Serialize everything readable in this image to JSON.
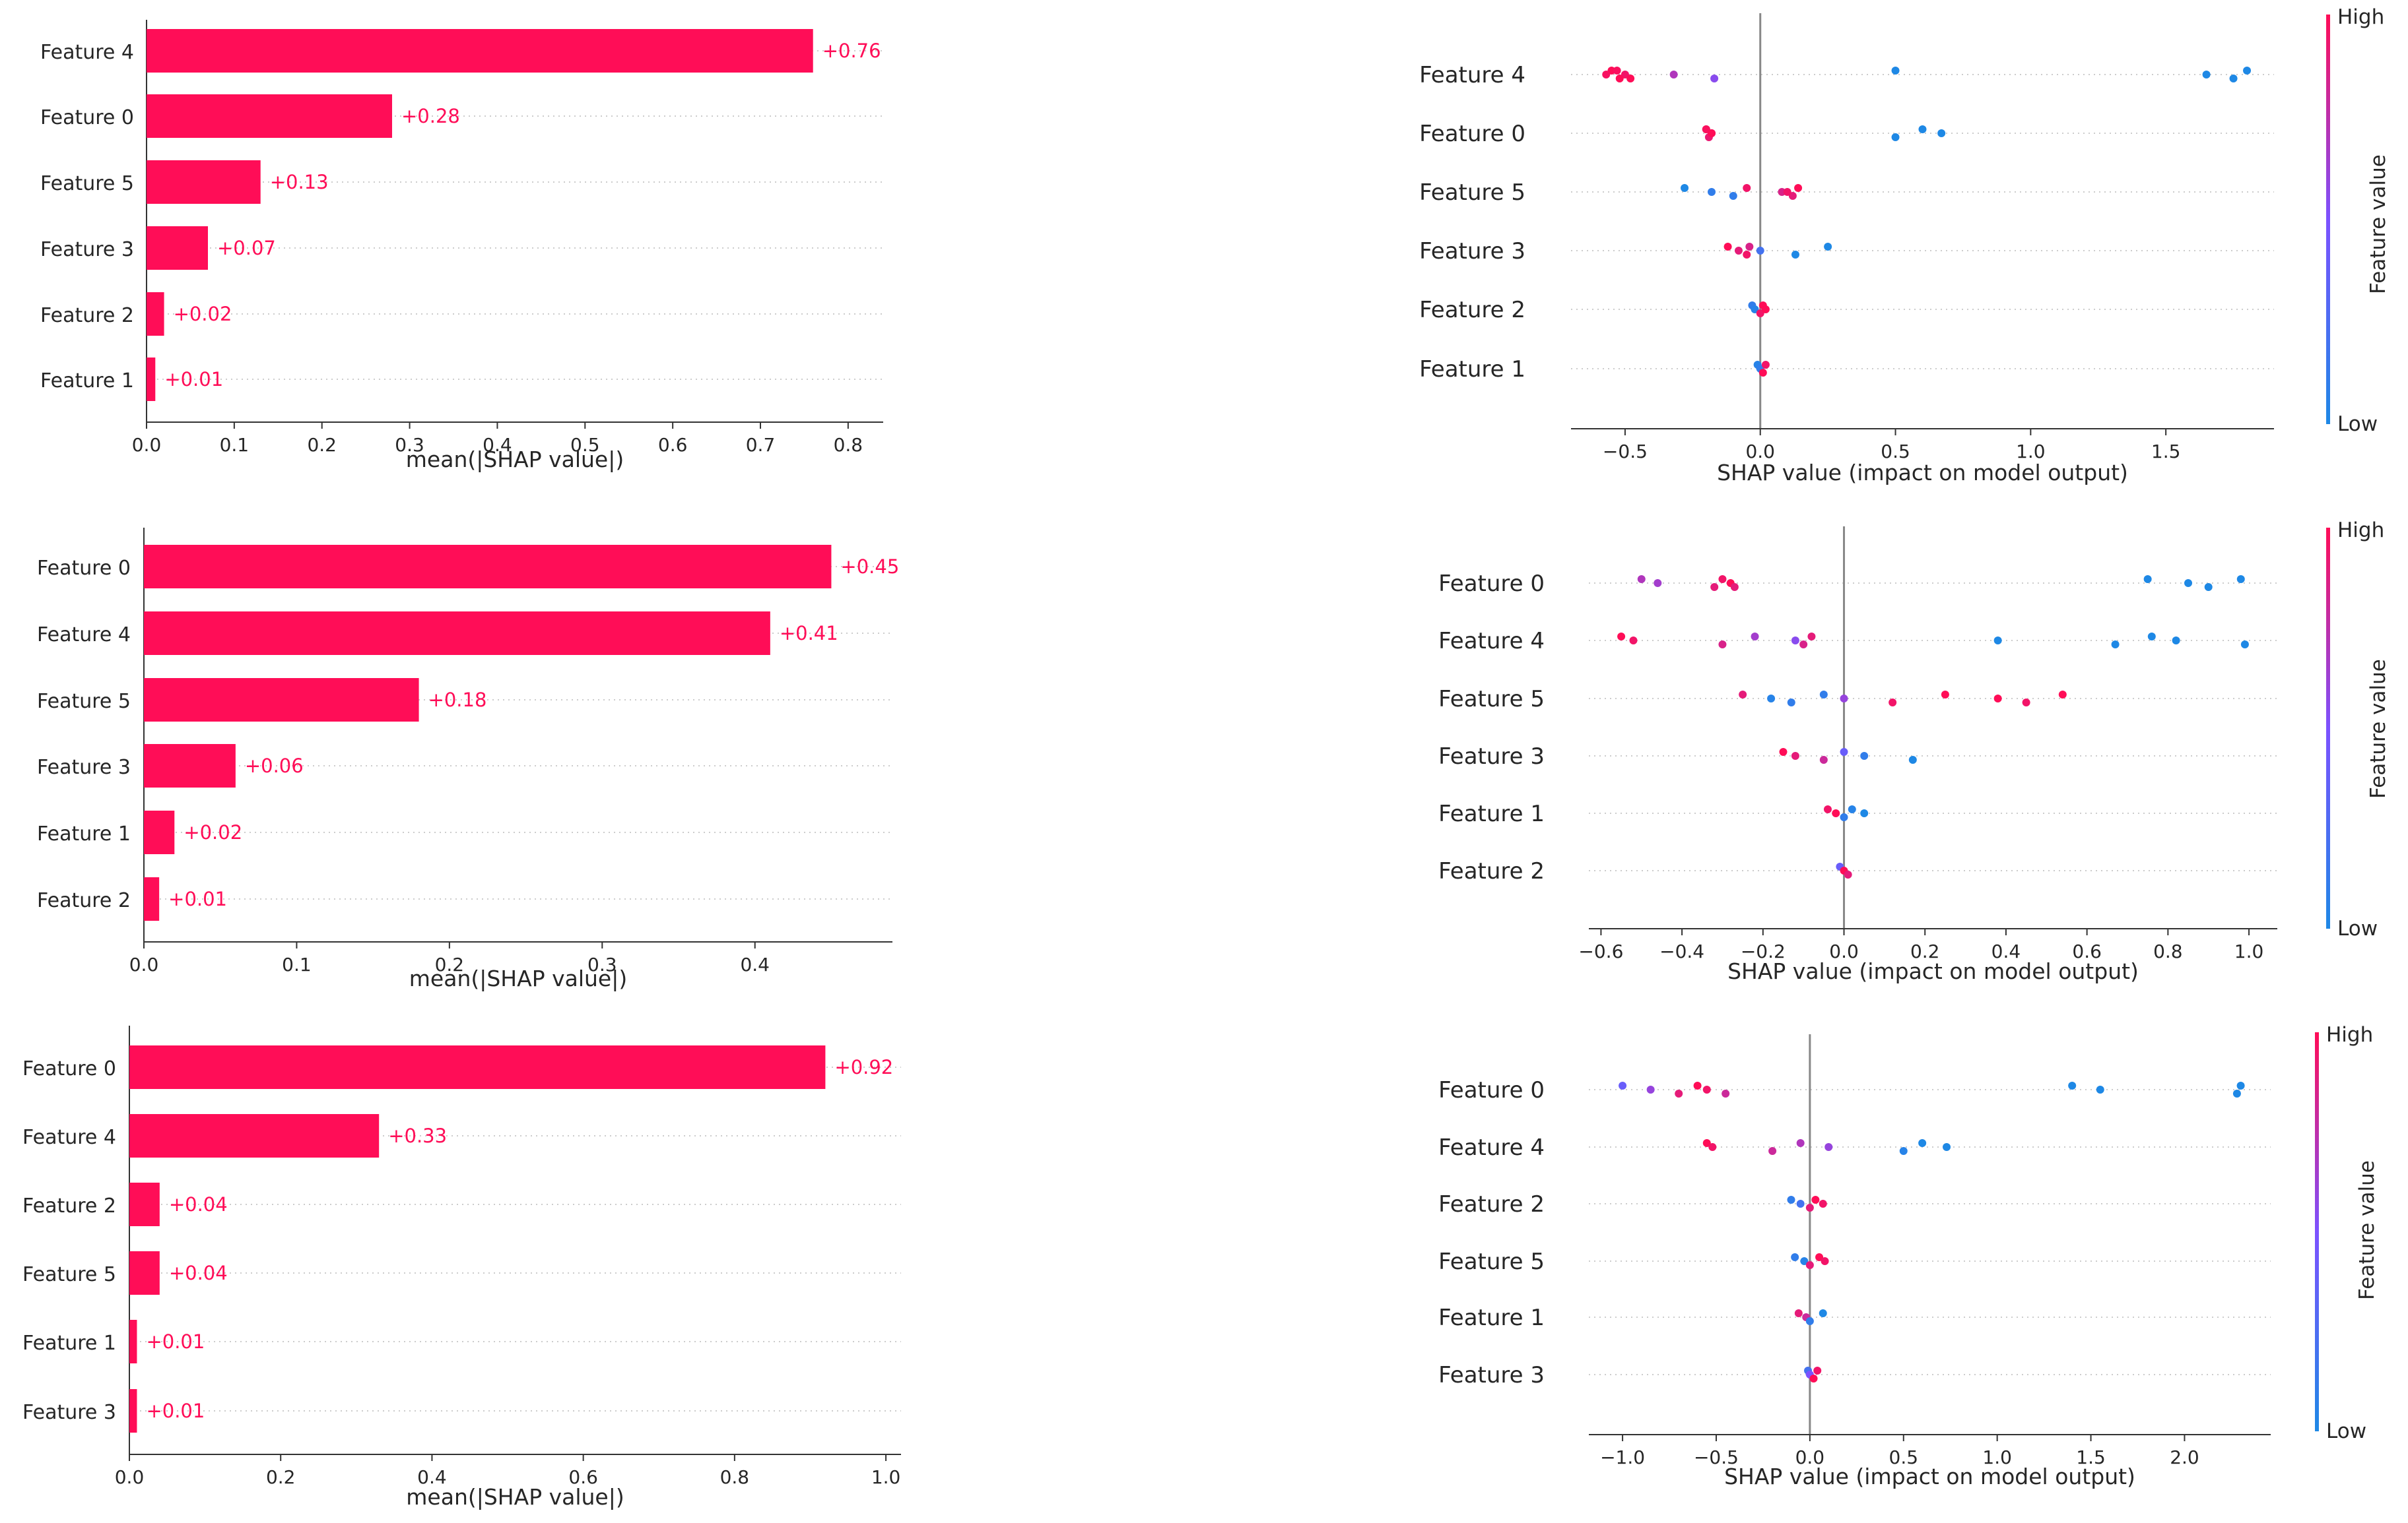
{
  "colors": {
    "pos": "#ff0d57",
    "low": "#1e88e5",
    "high": "#ff0d57",
    "mid": "#7c52ff"
  },
  "colorbar": {
    "high": "High",
    "low": "Low",
    "label": "Feature value"
  },
  "chart_data": [
    {
      "type": "bar",
      "xlabel": "mean(|SHAP value|)",
      "xlim": [
        0,
        0.84
      ],
      "ticks": [
        "0.0",
        "0.1",
        "0.2",
        "0.3",
        "0.4",
        "0.5",
        "0.6",
        "0.7",
        "0.8"
      ],
      "categories": [
        "Feature 4",
        "Feature 0",
        "Feature 5",
        "Feature 3",
        "Feature 2",
        "Feature 1"
      ],
      "values": [
        0.76,
        0.28,
        0.13,
        0.07,
        0.02,
        0.01
      ],
      "labels": [
        "+0.76",
        "+0.28",
        "+0.13",
        "+0.07",
        "+0.02",
        "+0.01"
      ]
    },
    {
      "type": "scatter",
      "xlabel": "SHAP value (impact on model output)",
      "xlim": [
        -0.7,
        1.9
      ],
      "ticks": [
        "−0.5",
        "0.0",
        "0.5",
        "1.0",
        "1.5"
      ],
      "categories": [
        "Feature 4",
        "Feature 0",
        "Feature 5",
        "Feature 3",
        "Feature 2",
        "Feature 1"
      ],
      "series": [
        [
          [
            -0.55,
            1
          ],
          [
            -0.5,
            0.95
          ],
          [
            -0.48,
            1
          ],
          [
            -0.53,
            0.98
          ],
          [
            -0.32,
            0.7
          ],
          [
            -0.17,
            0.55
          ],
          [
            0.5,
            0
          ],
          [
            1.65,
            0
          ],
          [
            1.75,
            0
          ],
          [
            1.8,
            0
          ],
          [
            -0.57,
            0.97
          ],
          [
            -0.52,
            1
          ]
        ],
        [
          [
            -0.2,
            1
          ],
          [
            -0.18,
            0.95
          ],
          [
            -0.19,
            0.92
          ],
          [
            -0.2,
            0.98
          ],
          [
            -0.18,
            1
          ],
          [
            0.5,
            0
          ],
          [
            0.6,
            0
          ],
          [
            0.67,
            0
          ]
        ],
        [
          [
            -0.28,
            0
          ],
          [
            -0.18,
            0.1
          ],
          [
            -0.1,
            0.1
          ],
          [
            -0.05,
            0.95
          ],
          [
            0.08,
            0.85
          ],
          [
            0.12,
            0.9
          ],
          [
            0.14,
            1
          ],
          [
            0.1,
            0.95
          ]
        ],
        [
          [
            -0.12,
            1
          ],
          [
            -0.08,
            0.9
          ],
          [
            -0.05,
            0.95
          ],
          [
            -0.04,
            0.85
          ],
          [
            0.0,
            0.2
          ],
          [
            0.13,
            0
          ],
          [
            0.25,
            0
          ]
        ],
        [
          [
            -0.03,
            0.1
          ],
          [
            -0.02,
            0.05
          ],
          [
            0.0,
            0.95
          ],
          [
            0.01,
            1
          ],
          [
            0.02,
            1
          ]
        ],
        [
          [
            -0.01,
            0.05
          ],
          [
            0.0,
            0.1
          ],
          [
            0.01,
            1
          ],
          [
            0.02,
            0.95
          ]
        ]
      ]
    },
    {
      "type": "bar",
      "xlabel": "mean(|SHAP value|)",
      "xlim": [
        0,
        0.49
      ],
      "ticks": [
        "0.0",
        "0.1",
        "0.2",
        "0.3",
        "0.4"
      ],
      "categories": [
        "Feature 0",
        "Feature 4",
        "Feature 5",
        "Feature 3",
        "Feature 1",
        "Feature 2"
      ],
      "values": [
        0.45,
        0.41,
        0.18,
        0.06,
        0.02,
        0.01
      ],
      "labels": [
        "+0.45",
        "+0.41",
        "+0.18",
        "+0.06",
        "+0.02",
        "+0.01"
      ]
    },
    {
      "type": "scatter",
      "xlabel": "SHAP value (impact on model output)",
      "xlim": [
        -0.63,
        1.07
      ],
      "ticks": [
        "−0.6",
        "−0.4",
        "−0.2",
        "0.0",
        "0.2",
        "0.4",
        "0.6",
        "0.8",
        "1.0"
      ],
      "categories": [
        "Feature 0",
        "Feature 4",
        "Feature 5",
        "Feature 3",
        "Feature 1",
        "Feature 2"
      ],
      "series": [
        [
          [
            -0.5,
            0.7
          ],
          [
            -0.46,
            0.65
          ],
          [
            -0.32,
            0.9
          ],
          [
            -0.3,
            0.95
          ],
          [
            -0.28,
            1
          ],
          [
            -0.27,
            0.9
          ],
          [
            0.75,
            0
          ],
          [
            0.85,
            0
          ],
          [
            0.9,
            0
          ],
          [
            0.98,
            0
          ]
        ],
        [
          [
            -0.55,
            1
          ],
          [
            -0.52,
            0.95
          ],
          [
            -0.3,
            0.85
          ],
          [
            -0.22,
            0.65
          ],
          [
            -0.12,
            0.55
          ],
          [
            -0.1,
            0.85
          ],
          [
            -0.08,
            0.9
          ],
          [
            0.38,
            0
          ],
          [
            0.67,
            0
          ],
          [
            0.76,
            0
          ],
          [
            0.82,
            0
          ],
          [
            0.99,
            0
          ]
        ],
        [
          [
            -0.25,
            0.9
          ],
          [
            -0.18,
            0.05
          ],
          [
            -0.13,
            0.1
          ],
          [
            -0.05,
            0.1
          ],
          [
            0.0,
            0.6
          ],
          [
            0.12,
            0.95
          ],
          [
            0.25,
            1
          ],
          [
            0.38,
            1
          ],
          [
            0.45,
            0.95
          ],
          [
            0.54,
            1
          ]
        ],
        [
          [
            -0.15,
            1
          ],
          [
            -0.12,
            0.9
          ],
          [
            -0.05,
            0.8
          ],
          [
            0.0,
            0.4
          ],
          [
            0.05,
            0.1
          ],
          [
            0.17,
            0
          ]
        ],
        [
          [
            -0.04,
            0.95
          ],
          [
            -0.02,
            1
          ],
          [
            0.0,
            0.1
          ],
          [
            0.02,
            0.05
          ],
          [
            0.05,
            0
          ]
        ],
        [
          [
            -0.01,
            0.4
          ],
          [
            0.0,
            1
          ],
          [
            0.01,
            0.9
          ]
        ]
      ]
    },
    {
      "type": "bar",
      "xlabel": "mean(|SHAP value|)",
      "xlim": [
        0,
        1.02
      ],
      "ticks": [
        "0.0",
        "0.2",
        "0.4",
        "0.6",
        "0.8",
        "1.0"
      ],
      "categories": [
        "Feature 0",
        "Feature 4",
        "Feature 2",
        "Feature 5",
        "Feature 1",
        "Feature 3"
      ],
      "values": [
        0.92,
        0.33,
        0.04,
        0.04,
        0.01,
        0.01
      ],
      "labels": [
        "+0.92",
        "+0.33",
        "+0.04",
        "+0.04",
        "+0.01",
        "+0.01"
      ]
    },
    {
      "type": "scatter",
      "xlabel": "SHAP value (impact on model output)",
      "xlim": [
        -1.18,
        2.46
      ],
      "ticks": [
        "−1.0",
        "−0.5",
        "0.0",
        "0.5",
        "1.0",
        "1.5",
        "2.0"
      ],
      "categories": [
        "Feature 0",
        "Feature 4",
        "Feature 2",
        "Feature 5",
        "Feature 1",
        "Feature 3"
      ],
      "series": [
        [
          [
            -1.0,
            0.4
          ],
          [
            -0.85,
            0.6
          ],
          [
            -0.7,
            0.9
          ],
          [
            -0.6,
            1
          ],
          [
            -0.55,
            0.95
          ],
          [
            -0.45,
            0.8
          ],
          [
            1.4,
            0
          ],
          [
            1.55,
            0
          ],
          [
            2.28,
            0
          ],
          [
            2.3,
            0
          ]
        ],
        [
          [
            -0.55,
            1
          ],
          [
            -0.52,
            0.95
          ],
          [
            -0.2,
            0.8
          ],
          [
            -0.05,
            0.7
          ],
          [
            0.1,
            0.6
          ],
          [
            0.5,
            0.05
          ],
          [
            0.6,
            0
          ],
          [
            0.73,
            0
          ]
        ],
        [
          [
            -0.1,
            0.1
          ],
          [
            -0.05,
            0.2
          ],
          [
            0.0,
            0.9
          ],
          [
            0.03,
            1
          ],
          [
            0.07,
            0.95
          ]
        ],
        [
          [
            -0.08,
            0.1
          ],
          [
            -0.03,
            0.05
          ],
          [
            0.0,
            0.9
          ],
          [
            0.05,
            1
          ],
          [
            0.08,
            0.95
          ]
        ],
        [
          [
            -0.06,
            0.9
          ],
          [
            -0.02,
            0.8
          ],
          [
            0.0,
            0.1
          ],
          [
            0.07,
            0
          ]
        ],
        [
          [
            -0.01,
            0.2
          ],
          [
            0.0,
            0.5
          ],
          [
            0.02,
            1
          ],
          [
            0.04,
            0.95
          ]
        ]
      ]
    }
  ]
}
